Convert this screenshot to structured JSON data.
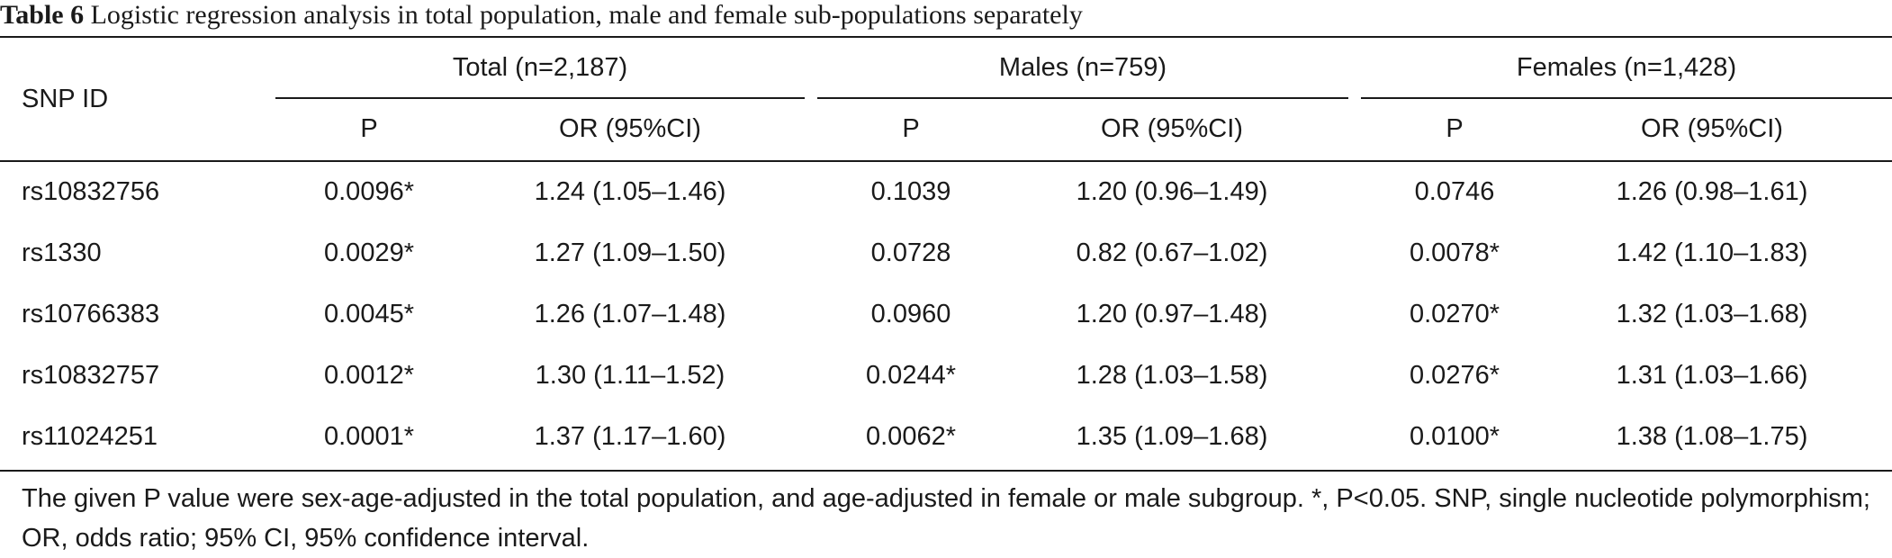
{
  "caption": {
    "label": "Table 6",
    "text": "Logistic regression analysis in total population, male and female sub-populations separately"
  },
  "header": {
    "snp_id": "SNP ID",
    "groups": [
      {
        "label": "Total (n=2,187)",
        "p": "P",
        "or": "OR (95%CI)"
      },
      {
        "label": "Males (n=759)",
        "p": "P",
        "or": "OR (95%CI)"
      },
      {
        "label": "Females (n=1,428)",
        "p": "P",
        "or": "OR (95%CI)"
      }
    ]
  },
  "rows": [
    {
      "snp": "rs10832756",
      "total_p": "0.0096*",
      "total_or": "1.24 (1.05–1.46)",
      "male_p": "0.1039",
      "male_or": "1.20 (0.96–1.49)",
      "female_p": "0.0746",
      "female_or": "1.26 (0.98–1.61)"
    },
    {
      "snp": "rs1330",
      "total_p": "0.0029*",
      "total_or": "1.27 (1.09–1.50)",
      "male_p": "0.0728",
      "male_or": "0.82 (0.67–1.02)",
      "female_p": "0.0078*",
      "female_or": "1.42 (1.10–1.83)"
    },
    {
      "snp": "rs10766383",
      "total_p": "0.0045*",
      "total_or": "1.26 (1.07–1.48)",
      "male_p": "0.0960",
      "male_or": "1.20 (0.97–1.48)",
      "female_p": "0.0270*",
      "female_or": "1.32 (1.03–1.68)"
    },
    {
      "snp": "rs10832757",
      "total_p": "0.0012*",
      "total_or": "1.30 (1.11–1.52)",
      "male_p": "0.0244*",
      "male_or": "1.28 (1.03–1.58)",
      "female_p": "0.0276*",
      "female_or": "1.31 (1.03–1.66)"
    },
    {
      "snp": "rs11024251",
      "total_p": "0.0001*",
      "total_or": "1.37 (1.17–1.60)",
      "male_p": "0.0062*",
      "male_or": "1.35 (1.09–1.68)",
      "female_p": "0.0100*",
      "female_or": "1.38 (1.08–1.75)"
    }
  ],
  "footnote": "The given P value were sex-age-adjusted in the total population, and age-adjusted in female or male subgroup. *, P<0.05. SNP, single nucleotide polymorphism; OR, odds ratio; 95% CI, 95% confidence interval."
}
